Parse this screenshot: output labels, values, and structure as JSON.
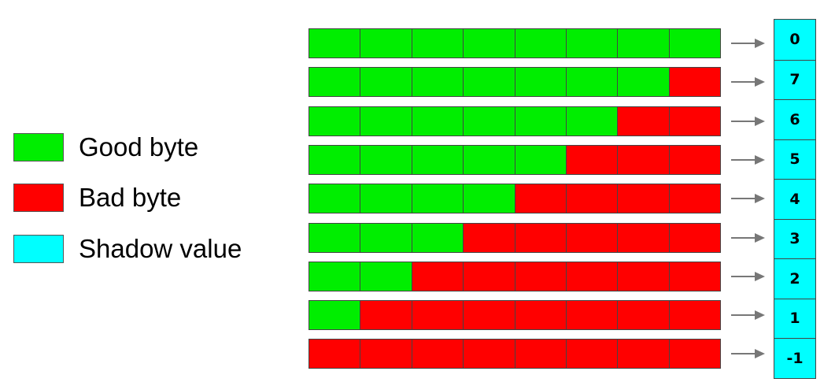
{
  "colors": {
    "good": "#00ee00",
    "bad": "#ff0000",
    "shadow": "#00ffff",
    "arrow": "#777777"
  },
  "legend": {
    "good_label": "Good byte",
    "bad_label": "Bad byte",
    "shadow_label": "Shadow value"
  },
  "rows": [
    {
      "good_bytes": 8,
      "shadow_value": "0"
    },
    {
      "good_bytes": 7,
      "shadow_value": "7"
    },
    {
      "good_bytes": 6,
      "shadow_value": "6"
    },
    {
      "good_bytes": 5,
      "shadow_value": "5"
    },
    {
      "good_bytes": 4,
      "shadow_value": "4"
    },
    {
      "good_bytes": 3,
      "shadow_value": "3"
    },
    {
      "good_bytes": 2,
      "shadow_value": "2"
    },
    {
      "good_bytes": 1,
      "shadow_value": "1"
    },
    {
      "good_bytes": 0,
      "shadow_value": "-1"
    }
  ]
}
